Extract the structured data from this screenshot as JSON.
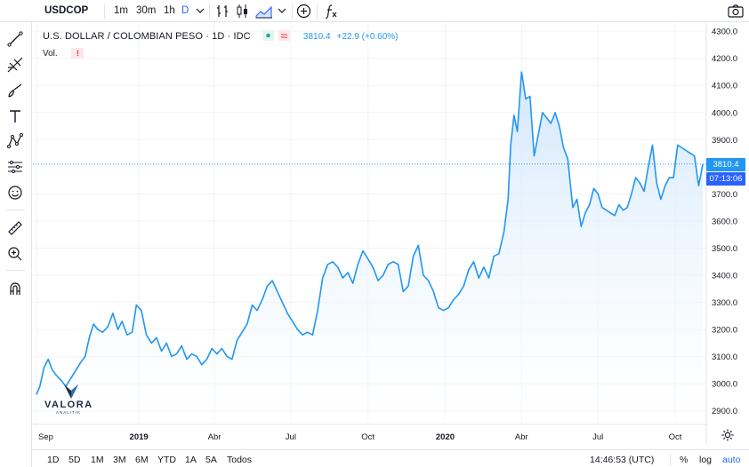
{
  "toolbar": {
    "symbol": "USDCOP",
    "intervals": [
      "1m",
      "30m",
      "1h",
      "D"
    ],
    "active_interval": "D",
    "indicators_icon": "fx-icon"
  },
  "legend": {
    "title": "U.S. DOLLAR / COLOMBIAN PESO · 1D · IDC",
    "last": "3810.4",
    "change": "+22.9 (+0.60%)",
    "volume_label": "Vol."
  },
  "price_tags": {
    "last_price": "3810.4",
    "countdown": "07:13:06"
  },
  "watermark": {
    "name": "VALORA",
    "sub": "ANALITIK"
  },
  "bottom": {
    "ranges": [
      "1D",
      "5D",
      "1M",
      "3M",
      "6M",
      "YTD",
      "1A",
      "5A",
      "Todos"
    ],
    "time": "14:46:53 (UTC)",
    "percent": "%",
    "log": "log",
    "auto": "auto"
  },
  "colors": {
    "line": "#2196f3",
    "area_top": "#cfe5fb",
    "area_bottom": "#ffffff",
    "accent": "#2962ff",
    "grid": "#f0f3fa"
  },
  "chart_data": {
    "type": "area",
    "ylabel": "",
    "ylim": [
      2850,
      4330
    ],
    "yticks": [
      2900,
      3000,
      3100,
      3200,
      3300,
      3400,
      3500,
      3600,
      3700,
      3800,
      3900,
      4000,
      4100,
      4200,
      4300
    ],
    "ytick_labels": [
      "2900.0",
      "3000.0",
      "3100.0",
      "3200.0",
      "3300.0",
      "3400.0",
      "3500.0",
      "3600.0",
      "3700.0",
      "3800.0",
      "3900.0",
      "4000.0",
      "4100.0",
      "4200.0",
      "4300.0"
    ],
    "xlim": [
      "2018-09-01",
      "2020-11-05"
    ],
    "xticks": [
      {
        "date": "2018-09-01",
        "label": "Sep"
      },
      {
        "date": "2019-01-01",
        "label": "2019"
      },
      {
        "date": "2019-04-01",
        "label": "Abr"
      },
      {
        "date": "2019-07-01",
        "label": "Jul"
      },
      {
        "date": "2019-10-01",
        "label": "Oct"
      },
      {
        "date": "2020-01-01",
        "label": "2020"
      },
      {
        "date": "2020-04-01",
        "label": "Abr"
      },
      {
        "date": "2020-07-01",
        "label": "Jul"
      },
      {
        "date": "2020-10-01",
        "label": "Oct"
      }
    ],
    "series": [
      {
        "x": [
          "2018-09-01",
          "2018-09-05",
          "2018-09-10",
          "2018-09-15",
          "2018-09-20",
          "2018-09-25",
          "2018-10-01",
          "2018-10-06",
          "2018-10-12",
          "2018-10-18",
          "2018-10-24",
          "2018-10-29",
          "2018-11-03",
          "2018-11-08",
          "2018-11-13",
          "2018-11-19",
          "2018-11-25",
          "2018-12-01",
          "2018-12-07",
          "2018-12-12",
          "2018-12-18",
          "2018-12-24",
          "2018-12-29",
          "2019-01-04",
          "2019-01-10",
          "2019-01-16",
          "2019-01-22",
          "2019-01-28",
          "2019-02-03",
          "2019-02-09",
          "2019-02-15",
          "2019-02-21",
          "2019-02-27",
          "2019-03-05",
          "2019-03-11",
          "2019-03-17",
          "2019-03-23",
          "2019-03-29",
          "2019-04-04",
          "2019-04-10",
          "2019-04-16",
          "2019-04-22",
          "2019-04-28",
          "2019-05-04",
          "2019-05-10",
          "2019-05-16",
          "2019-05-22",
          "2019-05-28",
          "2019-06-03",
          "2019-06-09",
          "2019-06-15",
          "2019-06-21",
          "2019-06-27",
          "2019-07-03",
          "2019-07-09",
          "2019-07-15",
          "2019-07-21",
          "2019-07-27",
          "2019-08-02",
          "2019-08-08",
          "2019-08-14",
          "2019-08-20",
          "2019-08-26",
          "2019-09-01",
          "2019-09-07",
          "2019-09-13",
          "2019-09-19",
          "2019-09-25",
          "2019-10-01",
          "2019-10-07",
          "2019-10-13",
          "2019-10-19",
          "2019-10-25",
          "2019-10-31",
          "2019-11-06",
          "2019-11-12",
          "2019-11-18",
          "2019-11-24",
          "2019-11-30",
          "2019-12-06",
          "2019-12-12",
          "2019-12-18",
          "2019-12-24",
          "2019-12-30",
          "2020-01-05",
          "2020-01-11",
          "2020-01-17",
          "2020-01-23",
          "2020-01-29",
          "2020-02-04",
          "2020-02-10",
          "2020-02-16",
          "2020-02-22",
          "2020-02-28",
          "2020-03-05",
          "2020-03-11",
          "2020-03-16",
          "2020-03-19",
          "2020-03-23",
          "2020-03-27",
          "2020-04-01",
          "2020-04-06",
          "2020-04-11",
          "2020-04-16",
          "2020-04-21",
          "2020-04-26",
          "2020-05-01",
          "2020-05-06",
          "2020-05-11",
          "2020-05-16",
          "2020-05-21",
          "2020-05-26",
          "2020-06-01",
          "2020-06-06",
          "2020-06-11",
          "2020-06-16",
          "2020-06-21",
          "2020-06-26",
          "2020-07-01",
          "2020-07-06",
          "2020-07-11",
          "2020-07-16",
          "2020-07-21",
          "2020-07-26",
          "2020-07-31",
          "2020-08-05",
          "2020-08-10",
          "2020-08-15",
          "2020-08-20",
          "2020-08-25",
          "2020-08-30",
          "2020-09-04",
          "2020-09-09",
          "2020-09-14",
          "2020-09-19",
          "2020-09-24",
          "2020-09-29",
          "2020-10-04",
          "2020-10-09",
          "2020-10-14",
          "2020-10-19",
          "2020-10-24",
          "2020-10-29",
          "2020-11-03"
        ],
        "y": [
          2960,
          2990,
          3060,
          3090,
          3050,
          3030,
          3010,
          2990,
          3020,
          3050,
          3080,
          3100,
          3170,
          3220,
          3200,
          3190,
          3210,
          3260,
          3200,
          3230,
          3180,
          3190,
          3290,
          3270,
          3180,
          3150,
          3170,
          3120,
          3150,
          3100,
          3110,
          3140,
          3090,
          3110,
          3100,
          3070,
          3090,
          3130,
          3110,
          3130,
          3100,
          3090,
          3160,
          3190,
          3220,
          3290,
          3270,
          3310,
          3360,
          3380,
          3340,
          3300,
          3260,
          3230,
          3200,
          3180,
          3190,
          3180,
          3270,
          3390,
          3440,
          3450,
          3430,
          3390,
          3410,
          3370,
          3440,
          3490,
          3460,
          3430,
          3380,
          3400,
          3440,
          3450,
          3440,
          3340,
          3360,
          3470,
          3510,
          3400,
          3380,
          3340,
          3280,
          3270,
          3280,
          3310,
          3330,
          3360,
          3420,
          3450,
          3390,
          3430,
          3390,
          3470,
          3480,
          3560,
          3680,
          3880,
          3990,
          3930,
          4150,
          4050,
          4060,
          3840,
          3920,
          4000,
          3980,
          3960,
          4000,
          3950,
          3870,
          3830,
          3650,
          3680,
          3580,
          3630,
          3660,
          3720,
          3700,
          3650,
          3640,
          3630,
          3620,
          3660,
          3640,
          3650,
          3700,
          3760,
          3740,
          3710,
          3800,
          3880,
          3740,
          3680,
          3730,
          3760,
          3760,
          3880,
          3870,
          3860,
          3850,
          3840,
          3730,
          3810
        ]
      }
    ]
  }
}
